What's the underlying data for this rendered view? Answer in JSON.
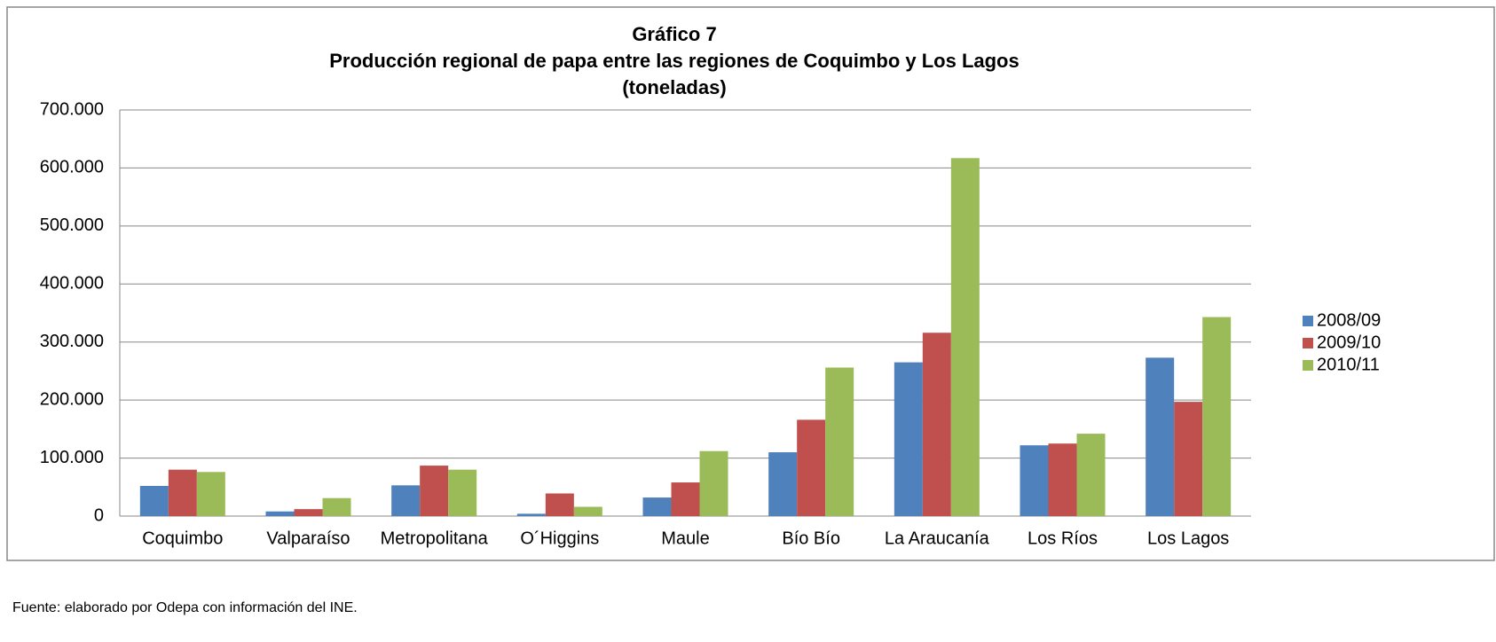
{
  "chart_data": {
    "type": "bar",
    "title": [
      "Gráfico 7",
      "Producción regional de papa entre las regiones de Coquimbo y Los Lagos",
      "(toneladas)"
    ],
    "categories": [
      "Coquimbo",
      "Valparaíso",
      "Metropolitana",
      "O´Higgins",
      "Maule",
      "Bío Bío",
      "La Araucanía",
      "Los Ríos",
      "Los Lagos"
    ],
    "series": [
      {
        "name": "2008/09",
        "color": "#4f81bd",
        "values": [
          52000,
          8000,
          53000,
          4000,
          32000,
          110000,
          265000,
          122000,
          273000
        ]
      },
      {
        "name": "2009/10",
        "color": "#c0504d",
        "values": [
          80000,
          12000,
          87000,
          39000,
          58000,
          166000,
          316000,
          125000,
          197000
        ]
      },
      {
        "name": "2010/11",
        "color": "#9bbb59",
        "values": [
          76000,
          31000,
          80000,
          16000,
          112000,
          256000,
          617000,
          142000,
          343000
        ]
      }
    ],
    "ylim": [
      0,
      700000
    ],
    "yticks": [
      0,
      {
        "value": 100000,
        "label": "100.000"
      },
      {
        "value": 200000,
        "label": "200.000"
      },
      {
        "value": 300000,
        "label": "300.000"
      },
      {
        "value": 400000,
        "label": "400.000"
      },
      {
        "value": 500000,
        "label": "500.000"
      },
      {
        "value": 600000,
        "label": "600.000"
      },
      {
        "value": 700000,
        "label": "700.000"
      }
    ],
    "grid": true,
    "legend": "right",
    "source": "Fuente: elaborado por Odepa con información del INE."
  }
}
